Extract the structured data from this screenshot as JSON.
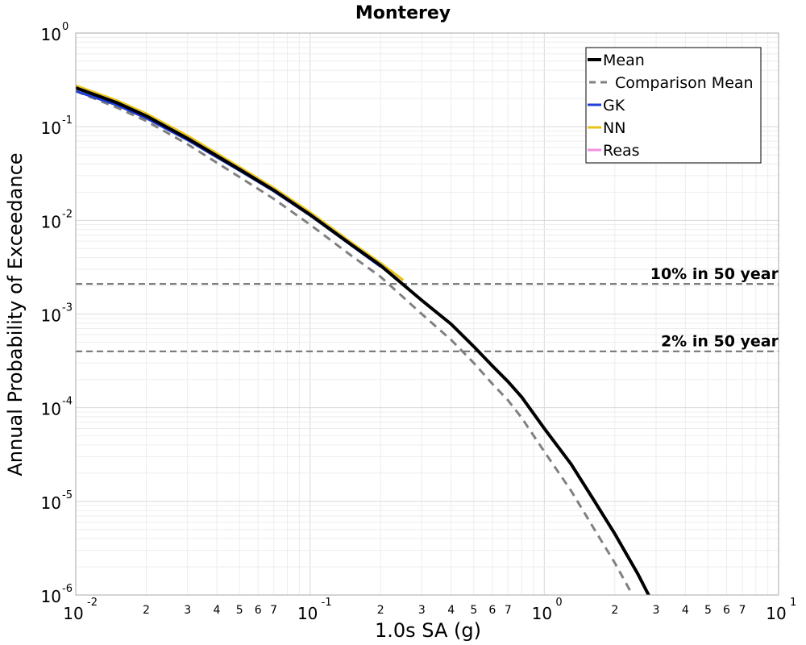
{
  "chart_data": {
    "type": "line",
    "title": "Monterey",
    "xlabel": "1.0s SA (g)",
    "ylabel": "Annual Probability of Exceedance",
    "xscale": "log",
    "yscale": "log",
    "xlim": [
      0.01,
      10
    ],
    "ylim": [
      1e-06,
      1
    ],
    "grid": true,
    "legend_position": "top-right",
    "x_major_ticks": [
      {
        "base": "10",
        "exp": "-2"
      },
      {
        "base": "10",
        "exp": "-1"
      },
      {
        "base": "10",
        "exp": "0"
      },
      {
        "base": "10",
        "exp": "1"
      }
    ],
    "y_major_ticks": [
      {
        "base": "10",
        "exp": "0"
      },
      {
        "base": "10",
        "exp": "-1"
      },
      {
        "base": "10",
        "exp": "-2"
      },
      {
        "base": "10",
        "exp": "-3"
      },
      {
        "base": "10",
        "exp": "-4"
      },
      {
        "base": "10",
        "exp": "-5"
      },
      {
        "base": "10",
        "exp": "-6"
      }
    ],
    "x_minor_tick_labels": [
      "2",
      "3",
      "4",
      "5",
      "6",
      "7"
    ],
    "reference_lines": [
      {
        "label": "10% in 50 year",
        "y": 0.0021
      },
      {
        "label": "2% in 50 year",
        "y": 0.0004
      }
    ],
    "series": [
      {
        "name": "Mean",
        "color": "#000000",
        "style": "solid",
        "width": 4,
        "x": [
          0.01,
          0.015,
          0.02,
          0.03,
          0.05,
          0.07,
          0.1,
          0.15,
          0.2,
          0.3,
          0.4,
          0.5,
          0.6,
          0.7,
          0.8,
          1.0,
          1.3,
          1.6,
          2.0,
          2.5,
          3.0
        ],
        "y": [
          0.26,
          0.18,
          0.13,
          0.075,
          0.035,
          0.021,
          0.0115,
          0.0055,
          0.0033,
          0.0014,
          0.00078,
          0.00045,
          0.00028,
          0.00019,
          0.00013,
          6e-05,
          2.5e-05,
          1.1e-05,
          4.5e-06,
          1.7e-06,
          7e-07
        ]
      },
      {
        "name": "Comparison Mean",
        "color": "#808080",
        "style": "dashed",
        "width": 3,
        "x": [
          0.01,
          0.015,
          0.02,
          0.03,
          0.05,
          0.07,
          0.1,
          0.15,
          0.2,
          0.3,
          0.4,
          0.5,
          0.6,
          0.7,
          0.8,
          1.0,
          1.3,
          1.6,
          2.0,
          2.5,
          3.0
        ],
        "y": [
          0.24,
          0.16,
          0.115,
          0.065,
          0.029,
          0.017,
          0.009,
          0.0042,
          0.0025,
          0.001,
          0.00053,
          0.0003,
          0.00018,
          0.00012,
          7.8e-05,
          3.4e-05,
          1.3e-05,
          5.5e-06,
          2.2e-06,
          8e-07,
          3.5e-07
        ]
      },
      {
        "name": "GK",
        "color": "#1f3fd8",
        "style": "solid",
        "width": 3,
        "x": [
          0.01,
          0.015,
          0.02,
          0.03,
          0.05,
          0.07,
          0.1,
          0.15,
          0.2
        ],
        "y": [
          0.24,
          0.17,
          0.123,
          0.072,
          0.034,
          0.0205,
          0.0113,
          0.0054,
          0.0032
        ]
      },
      {
        "name": "NN",
        "color": "#e8c21a",
        "style": "solid",
        "width": 3,
        "x": [
          0.01,
          0.015,
          0.02,
          0.03,
          0.05,
          0.07,
          0.1,
          0.15,
          0.2,
          0.25
        ],
        "y": [
          0.275,
          0.19,
          0.138,
          0.08,
          0.037,
          0.0222,
          0.0122,
          0.0058,
          0.0035,
          0.0023
        ]
      },
      {
        "name": "Reas",
        "color": "#f08ee0",
        "style": "solid",
        "width": 3,
        "x": [],
        "y": []
      }
    ]
  }
}
